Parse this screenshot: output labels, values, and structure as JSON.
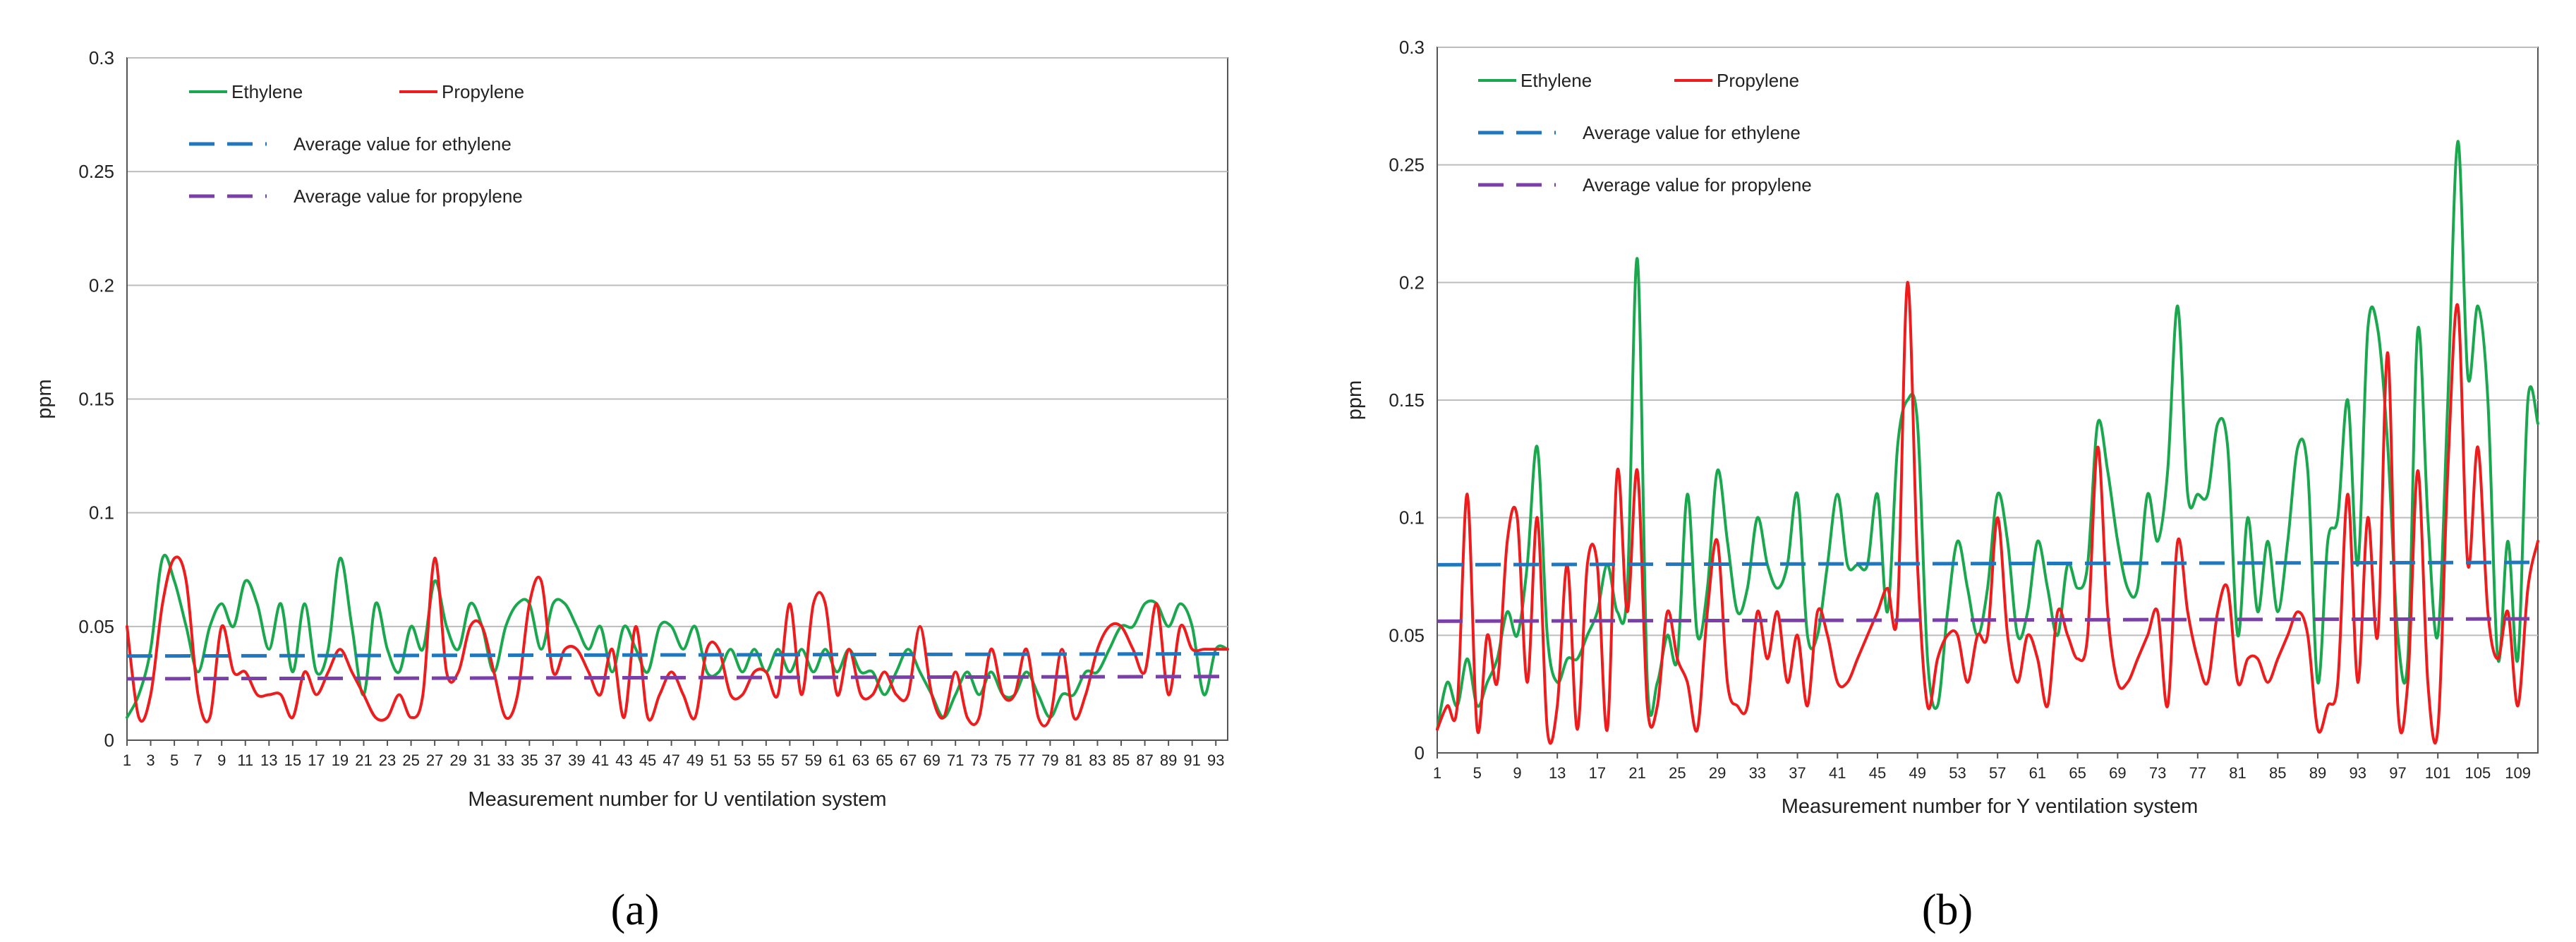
{
  "colors": {
    "ethylene": "#1aa84f",
    "propylene": "#ee1c1c",
    "avg_ethylene": "#1f77c0",
    "avg_propylene": "#7a3fa8",
    "grid": "#bdbdbd",
    "axis": "#555555"
  },
  "chart_data": [
    {
      "type": "line",
      "panel_label": "(a)",
      "title": "",
      "xlabel": "Measurement number for U ventilation system",
      "ylabel": "ppm",
      "ylim": [
        0,
        0.3
      ],
      "yticks": [
        "0",
        "0.05",
        "0.1",
        "0.15",
        "0.2",
        "0.25",
        "0.3"
      ],
      "xlim": [
        1,
        94
      ],
      "xtick_labels": [
        "1",
        "3",
        "5",
        "7",
        "9",
        "11",
        "13",
        "15",
        "17",
        "19",
        "21",
        "23",
        "25",
        "27",
        "29",
        "31",
        "33",
        "35",
        "37",
        "39",
        "41",
        "43",
        "45",
        "47",
        "49",
        "51",
        "53",
        "55",
        "57",
        "59",
        "61",
        "63",
        "65",
        "67",
        "69",
        "71",
        "73",
        "75",
        "77",
        "79",
        "81",
        "83",
        "85",
        "87",
        "89",
        "91",
        "93"
      ],
      "grid": true,
      "legend": [
        "Ethylene",
        "Propylene",
        "Average value for ethylene",
        "Average value for propylene"
      ],
      "series": [
        {
          "name": "Ethylene",
          "x": [
            1,
            2,
            3,
            4,
            5,
            6,
            7,
            8,
            9,
            10,
            11,
            12,
            13,
            14,
            15,
            16,
            17,
            18,
            19,
            20,
            21,
            22,
            23,
            24,
            25,
            26,
            27,
            28,
            29,
            30,
            31,
            32,
            33,
            34,
            35,
            36,
            37,
            38,
            39,
            40,
            41,
            42,
            43,
            44,
            45,
            46,
            47,
            48,
            49,
            50,
            51,
            52,
            53,
            54,
            55,
            56,
            57,
            58,
            59,
            60,
            61,
            62,
            63,
            64,
            65,
            66,
            67,
            68,
            69,
            70,
            71,
            72,
            73,
            74,
            75,
            76,
            77,
            78,
            79,
            80,
            81,
            82,
            83,
            84,
            85,
            86,
            87,
            88,
            89,
            90,
            91,
            92,
            93,
            94
          ],
          "values": [
            0.01,
            0.02,
            0.04,
            0.08,
            0.07,
            0.05,
            0.03,
            0.05,
            0.06,
            0.05,
            0.07,
            0.06,
            0.04,
            0.06,
            0.03,
            0.06,
            0.03,
            0.04,
            0.08,
            0.05,
            0.02,
            0.06,
            0.04,
            0.03,
            0.05,
            0.04,
            0.07,
            0.05,
            0.04,
            0.06,
            0.05,
            0.03,
            0.05,
            0.06,
            0.06,
            0.04,
            0.06,
            0.06,
            0.05,
            0.04,
            0.05,
            0.03,
            0.05,
            0.04,
            0.03,
            0.05,
            0.05,
            0.04,
            0.05,
            0.03,
            0.03,
            0.04,
            0.03,
            0.04,
            0.03,
            0.04,
            0.03,
            0.04,
            0.03,
            0.04,
            0.03,
            0.04,
            0.03,
            0.03,
            0.02,
            0.03,
            0.04,
            0.03,
            0.02,
            0.01,
            0.02,
            0.03,
            0.02,
            0.03,
            0.02,
            0.02,
            0.03,
            0.02,
            0.01,
            0.02,
            0.02,
            0.03,
            0.03,
            0.04,
            0.05,
            0.05,
            0.06,
            0.06,
            0.05,
            0.06,
            0.05,
            0.02,
            0.04,
            0.04
          ]
        },
        {
          "name": "Propylene",
          "x": [
            1,
            2,
            3,
            4,
            5,
            6,
            7,
            8,
            9,
            10,
            11,
            12,
            13,
            14,
            15,
            16,
            17,
            18,
            19,
            20,
            21,
            22,
            23,
            24,
            25,
            26,
            27,
            28,
            29,
            30,
            31,
            32,
            33,
            34,
            35,
            36,
            37,
            38,
            39,
            40,
            41,
            42,
            43,
            44,
            45,
            46,
            47,
            48,
            49,
            50,
            51,
            52,
            53,
            54,
            55,
            56,
            57,
            58,
            59,
            60,
            61,
            62,
            63,
            64,
            65,
            66,
            67,
            68,
            69,
            70,
            71,
            72,
            73,
            74,
            75,
            76,
            77,
            78,
            79,
            80,
            81,
            82,
            83,
            84,
            85,
            86,
            87,
            88,
            89,
            90,
            91,
            92,
            93,
            94
          ],
          "values": [
            0.05,
            0.01,
            0.02,
            0.06,
            0.08,
            0.07,
            0.02,
            0.01,
            0.05,
            0.03,
            0.03,
            0.02,
            0.02,
            0.02,
            0.01,
            0.03,
            0.02,
            0.03,
            0.04,
            0.03,
            0.02,
            0.01,
            0.01,
            0.02,
            0.01,
            0.02,
            0.08,
            0.03,
            0.03,
            0.05,
            0.05,
            0.03,
            0.01,
            0.02,
            0.06,
            0.07,
            0.03,
            0.04,
            0.04,
            0.03,
            0.02,
            0.04,
            0.01,
            0.05,
            0.01,
            0.02,
            0.03,
            0.02,
            0.01,
            0.04,
            0.04,
            0.02,
            0.02,
            0.03,
            0.03,
            0.02,
            0.06,
            0.02,
            0.06,
            0.06,
            0.02,
            0.04,
            0.02,
            0.02,
            0.03,
            0.02,
            0.02,
            0.05,
            0.02,
            0.01,
            0.03,
            0.01,
            0.01,
            0.04,
            0.02,
            0.02,
            0.04,
            0.01,
            0.01,
            0.04,
            0.01,
            0.02,
            0.04,
            0.05,
            0.05,
            0.04,
            0.03,
            0.06,
            0.02,
            0.05,
            0.04,
            0.04,
            0.04,
            0.04
          ]
        },
        {
          "name": "Average value for ethylene",
          "style": "dashed",
          "x": [
            1,
            94
          ],
          "values": [
            0.037,
            0.038
          ]
        },
        {
          "name": "Average value for propylene",
          "style": "dashed",
          "x": [
            1,
            94
          ],
          "values": [
            0.027,
            0.028
          ]
        }
      ]
    },
    {
      "type": "line",
      "panel_label": "(b)",
      "title": "",
      "xlabel": "Measurement number for Y ventilation system",
      "ylabel": "ppm",
      "ylim": [
        0,
        0.3
      ],
      "yticks": [
        "0",
        "0.05",
        "0.1",
        "0.15",
        "0.2",
        "0.25",
        "0.3"
      ],
      "xlim": [
        1,
        111
      ],
      "xtick_labels": [
        "1",
        "5",
        "9",
        "13",
        "17",
        "21",
        "25",
        "29",
        "33",
        "37",
        "41",
        "45",
        "49",
        "53",
        "57",
        "61",
        "65",
        "69",
        "73",
        "77",
        "81",
        "85",
        "89",
        "93",
        "97",
        "101",
        "105",
        "109"
      ],
      "grid": true,
      "legend": [
        "Ethylene",
        "Propylene",
        "Average value for ethylene",
        "Average value for propylene"
      ],
      "series": [
        {
          "name": "Ethylene",
          "x": [
            1,
            2,
            3,
            4,
            5,
            6,
            7,
            8,
            9,
            10,
            11,
            12,
            13,
            14,
            15,
            16,
            17,
            18,
            19,
            20,
            21,
            22,
            23,
            24,
            25,
            26,
            27,
            28,
            29,
            30,
            31,
            32,
            33,
            34,
            35,
            36,
            37,
            38,
            39,
            40,
            41,
            42,
            43,
            44,
            45,
            46,
            47,
            48,
            49,
            50,
            51,
            52,
            53,
            54,
            55,
            56,
            57,
            58,
            59,
            60,
            61,
            62,
            63,
            64,
            65,
            66,
            67,
            68,
            69,
            70,
            71,
            72,
            73,
            74,
            75,
            76,
            77,
            78,
            79,
            80,
            81,
            82,
            83,
            84,
            85,
            86,
            87,
            88,
            89,
            90,
            91,
            92,
            93,
            94,
            95,
            96,
            97,
            98,
            99,
            100,
            101,
            102,
            103,
            104,
            105,
            106,
            107,
            108,
            109,
            110,
            111
          ],
          "values": [
            0.01,
            0.03,
            0.02,
            0.04,
            0.02,
            0.03,
            0.04,
            0.06,
            0.05,
            0.08,
            0.13,
            0.05,
            0.03,
            0.04,
            0.04,
            0.05,
            0.06,
            0.08,
            0.06,
            0.07,
            0.21,
            0.03,
            0.03,
            0.05,
            0.04,
            0.11,
            0.05,
            0.07,
            0.12,
            0.09,
            0.06,
            0.07,
            0.1,
            0.08,
            0.07,
            0.08,
            0.11,
            0.05,
            0.05,
            0.08,
            0.11,
            0.08,
            0.08,
            0.08,
            0.11,
            0.06,
            0.13,
            0.15,
            0.14,
            0.04,
            0.02,
            0.06,
            0.09,
            0.07,
            0.05,
            0.07,
            0.11,
            0.09,
            0.05,
            0.06,
            0.09,
            0.07,
            0.05,
            0.08,
            0.07,
            0.08,
            0.14,
            0.12,
            0.09,
            0.07,
            0.07,
            0.11,
            0.09,
            0.12,
            0.19,
            0.11,
            0.11,
            0.11,
            0.14,
            0.13,
            0.05,
            0.1,
            0.06,
            0.09,
            0.06,
            0.09,
            0.13,
            0.12,
            0.03,
            0.09,
            0.1,
            0.15,
            0.08,
            0.18,
            0.18,
            0.13,
            0.05,
            0.04,
            0.18,
            0.1,
            0.05,
            0.15,
            0.26,
            0.16,
            0.19,
            0.15,
            0.04,
            0.09,
            0.04,
            0.15,
            0.14
          ]
        },
        {
          "name": "Propylene",
          "x": [
            1,
            2,
            3,
            4,
            5,
            6,
            7,
            8,
            9,
            10,
            11,
            12,
            13,
            14,
            15,
            16,
            17,
            18,
            19,
            20,
            21,
            22,
            23,
            24,
            25,
            26,
            27,
            28,
            29,
            30,
            31,
            32,
            33,
            34,
            35,
            36,
            37,
            38,
            39,
            40,
            41,
            42,
            43,
            44,
            45,
            46,
            47,
            48,
            49,
            50,
            51,
            52,
            53,
            54,
            55,
            56,
            57,
            58,
            59,
            60,
            61,
            62,
            63,
            64,
            65,
            66,
            67,
            68,
            69,
            70,
            71,
            72,
            73,
            74,
            75,
            76,
            77,
            78,
            79,
            80,
            81,
            82,
            83,
            84,
            85,
            86,
            87,
            88,
            89,
            90,
            91,
            92,
            93,
            94,
            95,
            96,
            97,
            98,
            99,
            100,
            101,
            102,
            103,
            104,
            105,
            106,
            107,
            108,
            109,
            110,
            111
          ],
          "values": [
            0.01,
            0.02,
            0.02,
            0.11,
            0.01,
            0.05,
            0.03,
            0.09,
            0.1,
            0.03,
            0.1,
            0.01,
            0.02,
            0.08,
            0.01,
            0.08,
            0.08,
            0.01,
            0.12,
            0.06,
            0.12,
            0.02,
            0.02,
            0.06,
            0.04,
            0.03,
            0.01,
            0.06,
            0.09,
            0.03,
            0.02,
            0.02,
            0.06,
            0.04,
            0.06,
            0.03,
            0.05,
            0.02,
            0.06,
            0.05,
            0.03,
            0.03,
            0.04,
            0.05,
            0.06,
            0.07,
            0.06,
            0.2,
            0.08,
            0.02,
            0.04,
            0.05,
            0.05,
            0.03,
            0.05,
            0.05,
            0.1,
            0.05,
            0.03,
            0.05,
            0.04,
            0.02,
            0.06,
            0.05,
            0.04,
            0.05,
            0.13,
            0.06,
            0.03,
            0.03,
            0.04,
            0.05,
            0.06,
            0.02,
            0.09,
            0.06,
            0.04,
            0.03,
            0.06,
            0.07,
            0.03,
            0.04,
            0.04,
            0.03,
            0.04,
            0.05,
            0.06,
            0.05,
            0.01,
            0.02,
            0.03,
            0.11,
            0.03,
            0.1,
            0.05,
            0.17,
            0.02,
            0.03,
            0.12,
            0.03,
            0.01,
            0.12,
            0.19,
            0.08,
            0.13,
            0.06,
            0.04,
            0.06,
            0.02,
            0.07,
            0.09
          ]
        },
        {
          "name": "Average value for ethylene",
          "style": "dashed",
          "x": [
            1,
            111
          ],
          "values": [
            0.08,
            0.081
          ]
        },
        {
          "name": "Average value for propylene",
          "style": "dashed",
          "x": [
            1,
            111
          ],
          "values": [
            0.056,
            0.057
          ]
        }
      ]
    }
  ]
}
